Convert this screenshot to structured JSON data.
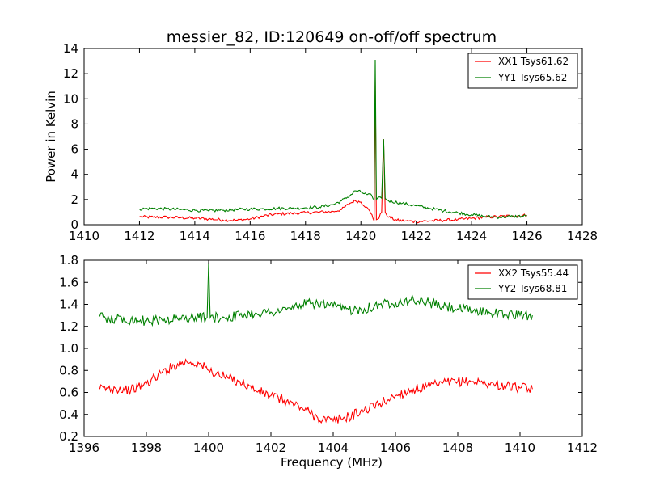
{
  "chart_data": [
    {
      "type": "line",
      "title": "messier_82, ID:120649 on-off/off spectrum",
      "xlabel": "",
      "ylabel": "Power in Kelvin",
      "xlim": [
        1410,
        1428
      ],
      "ylim": [
        0,
        14
      ],
      "xticks": [
        1410,
        1412,
        1414,
        1416,
        1418,
        1420,
        1422,
        1424,
        1426,
        1428
      ],
      "yticks": [
        0,
        2,
        4,
        6,
        8,
        10,
        12,
        14
      ],
      "legend_position": "top-right",
      "series": [
        {
          "name": "XX1 Tsys61.62",
          "color": "#ff0000",
          "points": [
            [
              1412.0,
              0.62
            ],
            [
              1412.5,
              0.6
            ],
            [
              1413.0,
              0.6
            ],
            [
              1413.5,
              0.55
            ],
            [
              1414.0,
              0.52
            ],
            [
              1414.5,
              0.45
            ],
            [
              1415.0,
              0.38
            ],
            [
              1415.5,
              0.35
            ],
            [
              1416.0,
              0.45
            ],
            [
              1416.5,
              0.7
            ],
            [
              1417.0,
              0.85
            ],
            [
              1417.5,
              0.9
            ],
            [
              1418.0,
              0.95
            ],
            [
              1418.5,
              1.0
            ],
            [
              1419.0,
              1.05
            ],
            [
              1419.3,
              1.2
            ],
            [
              1419.6,
              1.7
            ],
            [
              1419.8,
              1.9
            ],
            [
              1420.0,
              1.8
            ],
            [
              1420.2,
              1.4
            ],
            [
              1420.4,
              0.8
            ],
            [
              1420.48,
              0.3
            ],
            [
              1420.52,
              11.5
            ],
            [
              1420.56,
              0.4
            ],
            [
              1420.65,
              0.5
            ],
            [
              1420.75,
              1.0
            ],
            [
              1420.82,
              6.8
            ],
            [
              1420.88,
              1.0
            ],
            [
              1421.0,
              0.6
            ],
            [
              1421.3,
              0.35
            ],
            [
              1421.6,
              0.3
            ],
            [
              1422.0,
              0.25
            ],
            [
              1422.5,
              0.3
            ],
            [
              1423.0,
              0.35
            ],
            [
              1423.5,
              0.4
            ],
            [
              1424.0,
              0.5
            ],
            [
              1424.5,
              0.6
            ],
            [
              1425.0,
              0.65
            ],
            [
              1425.5,
              0.7
            ],
            [
              1426.0,
              0.75
            ]
          ]
        },
        {
          "name": "YY1 Tsys65.62",
          "color": "#008000",
          "points": [
            [
              1412.0,
              1.25
            ],
            [
              1412.5,
              1.3
            ],
            [
              1413.0,
              1.25
            ],
            [
              1413.5,
              1.2
            ],
            [
              1414.0,
              1.15
            ],
            [
              1414.5,
              1.1
            ],
            [
              1415.0,
              1.15
            ],
            [
              1415.5,
              1.2
            ],
            [
              1416.0,
              1.25
            ],
            [
              1416.5,
              1.25
            ],
            [
              1417.0,
              1.3
            ],
            [
              1417.5,
              1.3
            ],
            [
              1418.0,
              1.35
            ],
            [
              1418.5,
              1.4
            ],
            [
              1419.0,
              1.6
            ],
            [
              1419.3,
              1.9
            ],
            [
              1419.6,
              2.3
            ],
            [
              1419.8,
              2.7
            ],
            [
              1420.0,
              2.6
            ],
            [
              1420.2,
              2.4
            ],
            [
              1420.4,
              2.3
            ],
            [
              1420.48,
              2.0
            ],
            [
              1420.52,
              13.1
            ],
            [
              1420.56,
              2.0
            ],
            [
              1420.65,
              2.2
            ],
            [
              1420.75,
              2.1
            ],
            [
              1420.82,
              6.8
            ],
            [
              1420.88,
              2.1
            ],
            [
              1421.0,
              1.9
            ],
            [
              1421.5,
              1.7
            ],
            [
              1422.0,
              1.5
            ],
            [
              1422.5,
              1.3
            ],
            [
              1423.0,
              1.1
            ],
            [
              1423.5,
              0.95
            ],
            [
              1424.0,
              0.8
            ],
            [
              1424.5,
              0.65
            ],
            [
              1425.0,
              0.6
            ],
            [
              1425.5,
              0.65
            ],
            [
              1426.0,
              0.7
            ]
          ]
        }
      ]
    },
    {
      "type": "line",
      "title": "",
      "xlabel": "Frequency (MHz)",
      "ylabel": "",
      "xlim": [
        1396,
        1412
      ],
      "ylim": [
        0.2,
        1.8
      ],
      "xticks": [
        1396,
        1398,
        1400,
        1402,
        1404,
        1406,
        1408,
        1410,
        1412
      ],
      "yticks": [
        0.2,
        0.4,
        0.6,
        0.8,
        1.0,
        1.2,
        1.4,
        1.6,
        1.8
      ],
      "legend_position": "top-right",
      "series": [
        {
          "name": "XX2 Tsys55.44",
          "color": "#ff0000",
          "points": [
            [
              1396.5,
              0.63
            ],
            [
              1397.0,
              0.64
            ],
            [
              1397.5,
              0.62
            ],
            [
              1398.0,
              0.68
            ],
            [
              1398.5,
              0.78
            ],
            [
              1399.0,
              0.86
            ],
            [
              1399.3,
              0.88
            ],
            [
              1399.7,
              0.86
            ],
            [
              1400.0,
              0.8
            ],
            [
              1400.5,
              0.74
            ],
            [
              1401.0,
              0.7
            ],
            [
              1401.5,
              0.62
            ],
            [
              1402.0,
              0.57
            ],
            [
              1402.5,
              0.52
            ],
            [
              1403.0,
              0.46
            ],
            [
              1403.5,
              0.37
            ],
            [
              1404.0,
              0.34
            ],
            [
              1404.5,
              0.38
            ],
            [
              1405.0,
              0.44
            ],
            [
              1405.5,
              0.5
            ],
            [
              1406.0,
              0.57
            ],
            [
              1406.5,
              0.62
            ],
            [
              1407.0,
              0.65
            ],
            [
              1407.5,
              0.68
            ],
            [
              1408.0,
              0.7
            ],
            [
              1408.5,
              0.7
            ],
            [
              1409.0,
              0.68
            ],
            [
              1409.5,
              0.66
            ],
            [
              1410.0,
              0.64
            ],
            [
              1410.4,
              0.63
            ]
          ]
        },
        {
          "name": "YY2 Tsys68.81",
          "color": "#008000",
          "points": [
            [
              1396.5,
              1.29
            ],
            [
              1397.0,
              1.27
            ],
            [
              1397.5,
              1.26
            ],
            [
              1398.0,
              1.25
            ],
            [
              1398.5,
              1.26
            ],
            [
              1399.0,
              1.27
            ],
            [
              1399.5,
              1.28
            ],
            [
              1399.95,
              1.28
            ],
            [
              1400.0,
              1.78
            ],
            [
              1400.05,
              1.28
            ],
            [
              1400.5,
              1.28
            ],
            [
              1401.0,
              1.3
            ],
            [
              1401.5,
              1.32
            ],
            [
              1402.0,
              1.33
            ],
            [
              1402.5,
              1.35
            ],
            [
              1403.0,
              1.4
            ],
            [
              1403.5,
              1.41
            ],
            [
              1404.0,
              1.38
            ],
            [
              1404.5,
              1.35
            ],
            [
              1405.0,
              1.36
            ],
            [
              1405.5,
              1.4
            ],
            [
              1406.0,
              1.42
            ],
            [
              1406.5,
              1.44
            ],
            [
              1407.0,
              1.42
            ],
            [
              1407.5,
              1.38
            ],
            [
              1408.0,
              1.36
            ],
            [
              1408.5,
              1.34
            ],
            [
              1409.0,
              1.33
            ],
            [
              1409.5,
              1.31
            ],
            [
              1410.0,
              1.3
            ],
            [
              1410.4,
              1.3
            ]
          ]
        }
      ]
    }
  ]
}
